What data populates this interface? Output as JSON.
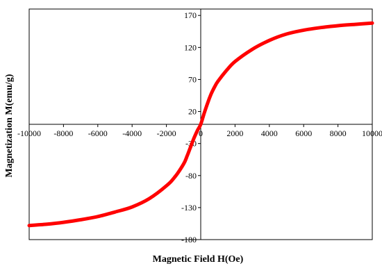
{
  "chart_data": {
    "type": "line",
    "title": "",
    "xlabel": "Magnetic Field H(Oe)",
    "ylabel": "Magnetization M(emu/g)",
    "xlim": [
      -10000,
      10000
    ],
    "ylim": [
      -180,
      180
    ],
    "x_ticks": [
      -10000,
      -8000,
      -6000,
      -4000,
      -2000,
      0,
      2000,
      4000,
      6000,
      8000,
      10000
    ],
    "x_tick_labels": [
      "-10000",
      "-8000",
      "-6000",
      "-4000",
      "-2000",
      "0",
      "2000",
      "4000",
      "6000",
      "8000",
      "10000"
    ],
    "y_ticks": [
      170,
      120,
      70,
      20,
      -30,
      -80,
      -130,
      -180
    ],
    "y_tick_labels": [
      "170",
      "120",
      "70",
      "20",
      "-30",
      "-80",
      "-130",
      "-180"
    ],
    "grid": false,
    "legend": "none",
    "series": [
      {
        "color": "#ff0000",
        "x": [
          -10000,
          -9000,
          -8000,
          -7000,
          -6000,
          -5000,
          -4000,
          -3000,
          -2000,
          -1500,
          -1000,
          -800,
          -600,
          -400,
          -200,
          0,
          200,
          400,
          600,
          800,
          1000,
          1500,
          2000,
          3000,
          4000,
          5000,
          6000,
          7000,
          8000,
          9000,
          10000
        ],
        "y": [
          -158,
          -156,
          -153,
          -149,
          -144,
          -137,
          -129,
          -116,
          -96,
          -82,
          -62,
          -50,
          -36,
          -22,
          -10,
          0,
          17,
          33,
          47,
          58,
          67,
          84,
          98,
          117,
          131,
          141,
          147,
          151,
          154,
          156,
          158
        ]
      }
    ]
  }
}
